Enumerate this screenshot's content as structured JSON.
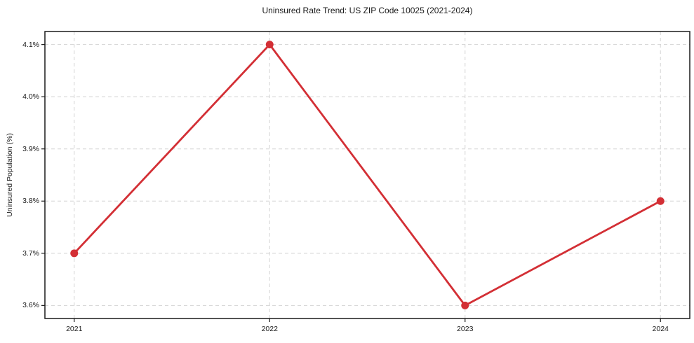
{
  "chart_data": {
    "type": "line",
    "title": "Uninsured Rate Trend: US ZIP Code 10025 (2021-2024)",
    "xlabel": "",
    "ylabel": "Uninsured Population (%)",
    "x": [
      2021,
      2022,
      2023,
      2024
    ],
    "x_tick_labels": [
      "2021",
      "2022",
      "2023",
      "2024"
    ],
    "values": [
      3.7,
      4.1,
      3.6,
      3.8
    ],
    "y_ticks": [
      3.6,
      3.7,
      3.8,
      3.9,
      4.0,
      4.1
    ],
    "y_tick_labels": [
      "3.6%",
      "3.7%",
      "3.8%",
      "3.9%",
      "4.0%",
      "4.1%"
    ],
    "xlim": [
      2020.85,
      2024.15
    ],
    "ylim": [
      3.575,
      4.125
    ],
    "grid": true,
    "grid_style": "dashed",
    "legend": "none",
    "marker": "circle",
    "colors": {
      "line": "#d32f35",
      "grid": "#d4d4d4",
      "spine": "#1a1a1a",
      "background": "#ffffff"
    }
  }
}
